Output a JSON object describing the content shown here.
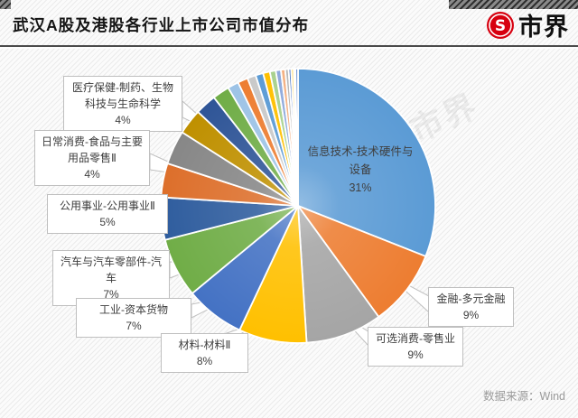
{
  "header": {
    "title": "武汉A股及港股各行业上市公司市值分布",
    "logo_text": "市界"
  },
  "watermark": {
    "text": "市界"
  },
  "footer": {
    "source": "数据来源：Wind"
  },
  "chart_data": {
    "type": "pie",
    "title": "武汉A股及港股各行业上市公司市值分布",
    "direction": "clockwise",
    "start_angle": "12-oclock",
    "legend": "none",
    "slices": [
      {
        "label": "信息技术-技术硬件与设备",
        "value": 31,
        "color": "#5B9BD5"
      },
      {
        "label": "金融-多元金融",
        "value": 9,
        "color": "#ED7D31"
      },
      {
        "label": "可选消费-零售业",
        "value": 9,
        "color": "#A5A5A5"
      },
      {
        "label": "材料-材料Ⅱ",
        "value": 8,
        "color": "#FFC000"
      },
      {
        "label": "工业-资本货物",
        "value": 7,
        "color": "#4472C4"
      },
      {
        "label": "汽车与汽车零部件-汽车",
        "value": 7,
        "color": "#70AD47"
      },
      {
        "label": "公用事业-公用事业Ⅱ",
        "value": 5,
        "color": "#2F5D9E"
      },
      {
        "label": "日常消费-食品与主要用品零售Ⅱ",
        "value": 4,
        "color": "#DD6F2B"
      },
      {
        "label": "医疗保健-制药、生物科技与生命科学",
        "value": 4,
        "color": "#878787"
      },
      {
        "label": "",
        "value": 3.0,
        "color": "#BF9000"
      },
      {
        "label": "",
        "value": 2.5,
        "color": "#2F5597"
      },
      {
        "label": "",
        "value": 2.0,
        "color": "#70AD47"
      },
      {
        "label": "",
        "value": 1.3,
        "color": "#9DC3E6"
      },
      {
        "label": "",
        "value": 1.2,
        "color": "#ED7D31"
      },
      {
        "label": "",
        "value": 1.0,
        "color": "#C9C9C9"
      },
      {
        "label": "",
        "value": 0.9,
        "color": "#5B9BD5"
      },
      {
        "label": "",
        "value": 0.8,
        "color": "#FFC000"
      },
      {
        "label": "",
        "value": 0.7,
        "color": "#A9D18E"
      },
      {
        "label": "",
        "value": 0.6,
        "color": "#8FAADC"
      },
      {
        "label": "",
        "value": 0.5,
        "color": "#F4B183"
      },
      {
        "label": "",
        "value": 0.4,
        "color": "#B7B7B7"
      },
      {
        "label": "",
        "value": 0.3,
        "color": "#4472C4"
      },
      {
        "label": "",
        "value": 0.3,
        "color": "#FFD966"
      },
      {
        "label": "",
        "value": 0.2,
        "color": "#DEEBF7"
      },
      {
        "label": "",
        "value": 0.3,
        "color": "#698ED0"
      }
    ],
    "inside_label": {
      "text": "信息技术-技术硬件与\n设备\n31%"
    }
  },
  "callouts": [
    {
      "id": "healthcare",
      "text": "医疗保健-制药、生物\n科技与生命科学\n4%"
    },
    {
      "id": "consumer-staples",
      "text": "日常消费-食品与主要\n用品零售Ⅱ\n4%"
    },
    {
      "id": "utilities",
      "text": "公用事业-公用事业Ⅱ\n5%"
    },
    {
      "id": "autos",
      "text": "汽车与汽车零部件-汽\n车\n7%"
    },
    {
      "id": "industrials",
      "text": "工业-资本货物\n7%"
    },
    {
      "id": "materials",
      "text": "材料-材料Ⅱ\n8%"
    },
    {
      "id": "consumer-disc",
      "text": "可选消费-零售业\n9%"
    },
    {
      "id": "financials",
      "text": "金融-多元金融\n9%"
    }
  ]
}
